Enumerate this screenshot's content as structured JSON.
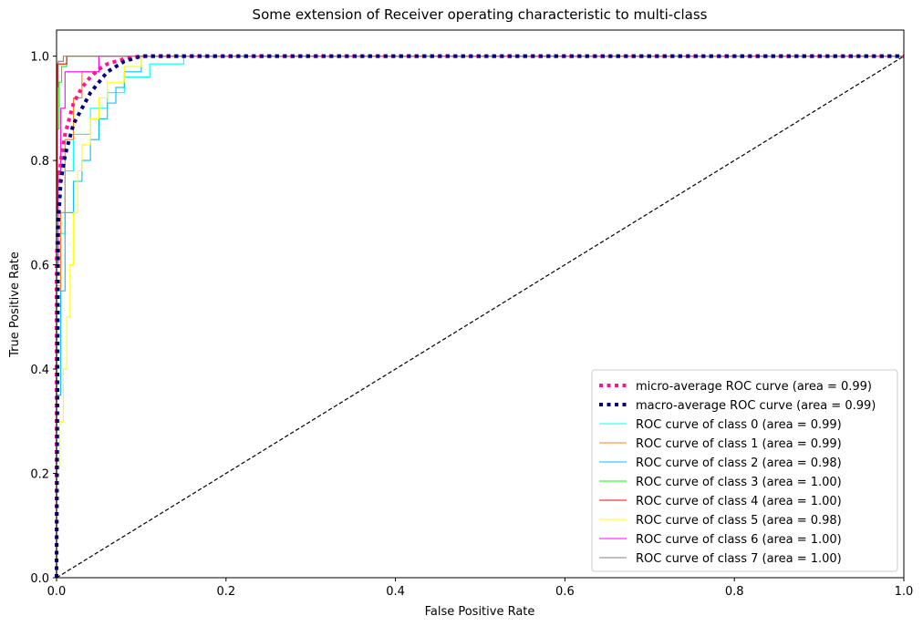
{
  "chart_data": {
    "type": "line",
    "title": "Some extension of Receiver operating characteristic to multi-class",
    "xlabel": "False Positive Rate",
    "ylabel": "True Positive Rate",
    "xlim": [
      0.0,
      1.0
    ],
    "ylim": [
      0.0,
      1.05
    ],
    "xticks": [
      "0.0",
      "0.2",
      "0.4",
      "0.6",
      "0.8",
      "1.0"
    ],
    "yticks": [
      "0.0",
      "0.2",
      "0.4",
      "0.6",
      "0.8",
      "1.0"
    ],
    "grid": false,
    "legend_position": "lower-right",
    "diagonal": {
      "x": [
        0,
        1
      ],
      "y": [
        0,
        1
      ],
      "color": "#000000",
      "style": "dashed"
    },
    "series": [
      {
        "name": "micro-average ROC curve (area = 0.99)",
        "color": "#ff1493",
        "style": "dotted-thick",
        "x": [
          0,
          0,
          0.002,
          0.005,
          0.01,
          0.015,
          0.02,
          0.03,
          0.04,
          0.05,
          0.06,
          0.07,
          0.08,
          0.1,
          0.2,
          0.5,
          1.0
        ],
        "y": [
          0,
          0.6,
          0.72,
          0.8,
          0.85,
          0.88,
          0.91,
          0.94,
          0.96,
          0.975,
          0.985,
          0.99,
          0.995,
          1.0,
          1.0,
          1.0,
          1.0
        ]
      },
      {
        "name": "macro-average ROC curve (area = 0.99)",
        "color": "#000080",
        "style": "dotted-thick",
        "x": [
          0,
          0.002,
          0.005,
          0.01,
          0.015,
          0.02,
          0.03,
          0.04,
          0.05,
          0.06,
          0.07,
          0.08,
          0.09,
          0.1,
          0.2,
          0.5,
          1.0
        ],
        "y": [
          0,
          0.68,
          0.76,
          0.81,
          0.84,
          0.87,
          0.9,
          0.93,
          0.95,
          0.97,
          0.98,
          0.99,
          0.995,
          1.0,
          1.0,
          1.0,
          1.0
        ]
      },
      {
        "name": "ROC curve of class 0 (area = 0.99)",
        "color": "#00ffff",
        "style": "solid",
        "x": [
          0,
          0,
          0.005,
          0.005,
          0.01,
          0.01,
          0.02,
          0.02,
          0.04,
          0.04,
          0.06,
          0.06,
          0.08,
          0.08,
          0.11,
          0.11,
          0.15,
          0.15,
          1.0
        ],
        "y": [
          0,
          0.56,
          0.56,
          0.66,
          0.66,
          0.78,
          0.78,
          0.85,
          0.85,
          0.9,
          0.9,
          0.93,
          0.93,
          0.96,
          0.96,
          0.985,
          0.985,
          1.0,
          1.0
        ]
      },
      {
        "name": "ROC curve of class 1 (area = 0.99)",
        "color": "#ff7f0e",
        "style": "solid",
        "x": [
          0,
          0,
          0.005,
          0.005,
          0.01,
          0.01,
          0.02,
          0.02,
          0.03,
          0.03,
          0.05,
          0.05,
          1.0
        ],
        "y": [
          0,
          0.52,
          0.52,
          0.7,
          0.7,
          0.84,
          0.84,
          0.92,
          0.92,
          0.97,
          0.97,
          1.0,
          1.0
        ]
      },
      {
        "name": "ROC curve of class 2 (area = 0.98)",
        "color": "#00bfff",
        "style": "solid",
        "x": [
          0,
          0,
          0.005,
          0.005,
          0.01,
          0.01,
          0.02,
          0.02,
          0.03,
          0.03,
          0.04,
          0.04,
          0.05,
          0.05,
          0.06,
          0.06,
          0.07,
          0.07,
          0.08,
          0.08,
          0.1,
          0.1,
          1.0
        ],
        "y": [
          0,
          0.35,
          0.35,
          0.55,
          0.55,
          0.7,
          0.7,
          0.76,
          0.76,
          0.8,
          0.8,
          0.84,
          0.84,
          0.88,
          0.88,
          0.91,
          0.91,
          0.94,
          0.94,
          0.97,
          0.97,
          1.0,
          1.0
        ]
      },
      {
        "name": "ROC curve of class 3 (area = 1.00)",
        "color": "#00ff00",
        "style": "solid",
        "x": [
          0,
          0,
          0.003,
          0.003,
          0.006,
          0.006,
          0.012,
          0.012,
          1.0
        ],
        "y": [
          0,
          0.86,
          0.86,
          0.95,
          0.95,
          0.98,
          0.98,
          1.0,
          1.0
        ]
      },
      {
        "name": "ROC curve of class 4 (area = 1.00)",
        "color": "#ff0000",
        "style": "solid",
        "x": [
          0,
          0,
          0.001,
          0.001,
          0.012,
          0.012,
          1.0
        ],
        "y": [
          0,
          0.7,
          0.7,
          0.985,
          0.985,
          1.0,
          1.0
        ]
      },
      {
        "name": "ROC curve of class 5 (area = 0.98)",
        "color": "#ffff00",
        "style": "solid",
        "x": [
          0,
          0,
          0.004,
          0.004,
          0.008,
          0.008,
          0.012,
          0.012,
          0.016,
          0.016,
          0.02,
          0.02,
          0.025,
          0.025,
          0.03,
          0.03,
          0.04,
          0.04,
          0.05,
          0.05,
          0.06,
          0.06,
          0.08,
          0.08,
          0.1,
          0.1,
          1.0
        ],
        "y": [
          0,
          0.21,
          0.21,
          0.3,
          0.3,
          0.4,
          0.4,
          0.5,
          0.5,
          0.6,
          0.6,
          0.7,
          0.7,
          0.78,
          0.78,
          0.83,
          0.83,
          0.88,
          0.88,
          0.92,
          0.92,
          0.95,
          0.95,
          0.98,
          0.98,
          1.0,
          1.0
        ]
      },
      {
        "name": "ROC curve of class 6 (area = 1.00)",
        "color": "#ff00ff",
        "style": "solid",
        "x": [
          0,
          0,
          0.002,
          0.002,
          0.005,
          0.005,
          0.01,
          0.01,
          0.05,
          0.05,
          1.0
        ],
        "y": [
          0,
          0.6,
          0.6,
          0.78,
          0.78,
          0.9,
          0.9,
          0.97,
          0.97,
          1.0,
          1.0
        ]
      },
      {
        "name": "ROC curve of class 7 (area = 1.00)",
        "color": "#808080",
        "style": "solid",
        "x": [
          0,
          0,
          0.002,
          0.002,
          0.008,
          0.008,
          1.0
        ],
        "y": [
          0,
          0.94,
          0.94,
          0.99,
          0.99,
          1.0,
          1.0
        ]
      }
    ]
  }
}
